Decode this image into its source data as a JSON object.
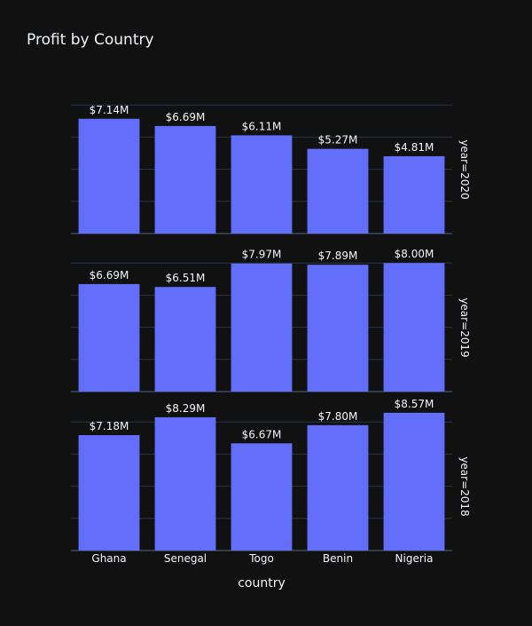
{
  "chart_data": {
    "type": "bar",
    "title": "Profit by Country",
    "xlabel": "country",
    "ylabel": "",
    "categories": [
      "Ghana",
      "Senegal",
      "Togo",
      "Benin",
      "Nigeria"
    ],
    "bar_color": "#636efa",
    "background": "#111111",
    "grid": true,
    "facets": [
      {
        "label": "year=2020",
        "values": [
          7.14,
          6.69,
          6.11,
          5.27,
          4.81
        ],
        "text": [
          "$7.14M",
          "$6.69M",
          "$6.11M",
          "$5.27M",
          "$4.81M"
        ]
      },
      {
        "label": "year=2019",
        "values": [
          6.69,
          6.51,
          7.97,
          7.89,
          8.0
        ],
        "text": [
          "$6.69M",
          "$6.51M",
          "$7.97M",
          "$7.89M",
          "$8.00M"
        ]
      },
      {
        "label": "year=2018",
        "values": [
          7.18,
          8.29,
          6.67,
          7.8,
          8.57
        ],
        "text": [
          "$7.18M",
          "$8.29M",
          "$6.67M",
          "$7.80M",
          "$8.57M"
        ]
      }
    ]
  }
}
